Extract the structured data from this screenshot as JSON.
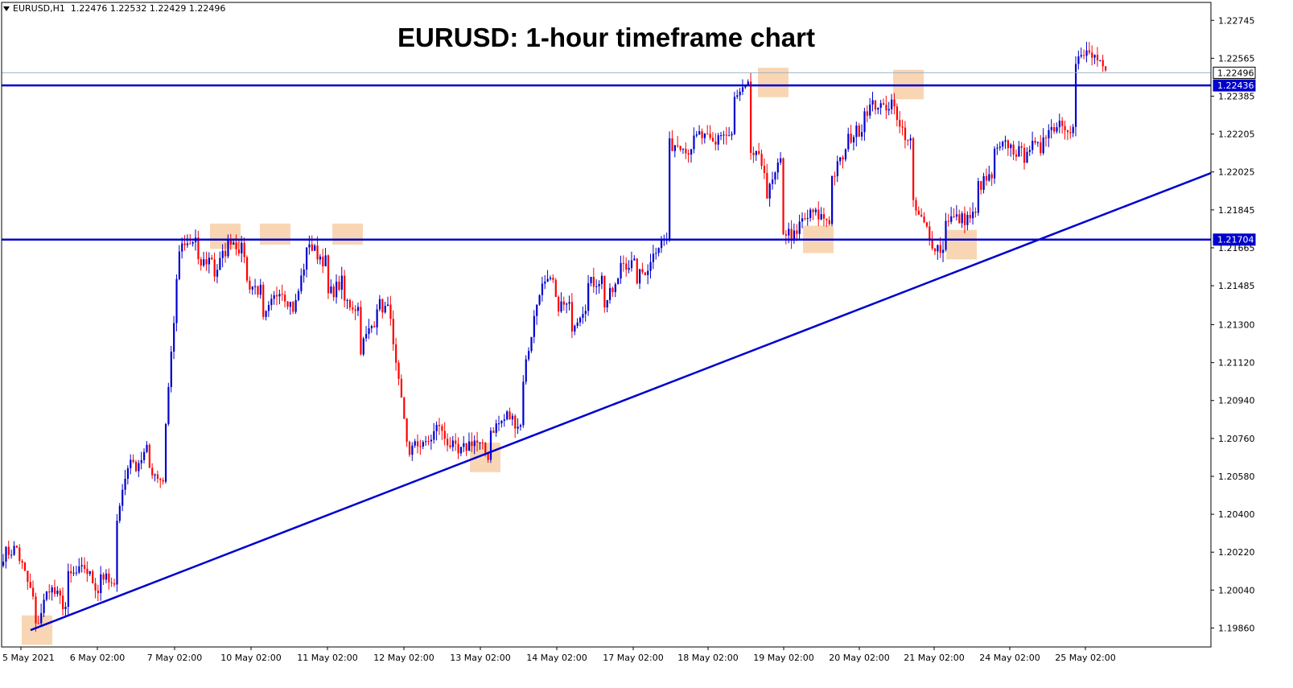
{
  "header": {
    "symbol": "EURUSD,H1",
    "ohlc": "1.22476 1.22532 1.22429 1.22496"
  },
  "colors": {
    "bull": "#0000cd",
    "bear": "#ff0000",
    "line": "#0000cd",
    "highlight": "#f5c89a",
    "grid": "#000000"
  },
  "chart_data": {
    "type": "candlestick",
    "title": "EURUSD: 1-hour timeframe chart",
    "ylim": [
      1.1977,
      1.2283
    ],
    "y_ticks": [
      "1.22745",
      "1.22565",
      "1.22385",
      "1.22205",
      "1.22025",
      "1.21845",
      "1.21665",
      "1.21485",
      "1.21300",
      "1.21120",
      "1.20940",
      "1.20760",
      "1.20580",
      "1.20400",
      "1.20220",
      "1.20040",
      "1.19860"
    ],
    "x_ticks": [
      "5 May 2021",
      "6 May 02:00",
      "7 May 02:00",
      "10 May 02:00",
      "11 May 02:00",
      "12 May 02:00",
      "13 May 02:00",
      "14 May 02:00",
      "17 May 02:00",
      "18 May 02:00",
      "19 May 02:00",
      "20 May 02:00",
      "21 May 02:00",
      "24 May 02:00",
      "25 May 02:00"
    ],
    "price_labels": [
      {
        "label": "1.22496",
        "value": 1.22496,
        "style": "current"
      },
      {
        "label": "1.22436",
        "value": 1.22436,
        "style": "line"
      },
      {
        "label": "1.21704",
        "value": 1.21704,
        "style": "line"
      }
    ],
    "horizontal_lines": [
      1.22436,
      1.21704
    ],
    "trendline": {
      "from": [
        "5 May 2021",
        1.1985
      ],
      "to": [
        "25 May 2021",
        1.2202
      ]
    },
    "highlight_zones": [
      {
        "date": "5 May",
        "low": 1.1978,
        "high": 1.1992
      },
      {
        "date": "7 May",
        "low": 1.2166,
        "high": 1.2178
      },
      {
        "date": "10 May",
        "low": 1.2168,
        "high": 1.2178
      },
      {
        "date": "11 May",
        "low": 1.2168,
        "high": 1.2178
      },
      {
        "date": "13 May",
        "low": 1.206,
        "high": 1.2074
      },
      {
        "date": "19 May",
        "low": 1.2238,
        "high": 1.2252
      },
      {
        "date": "20 May",
        "low": 1.2164,
        "high": 1.2177
      },
      {
        "date": "21 May",
        "low": 1.2237,
        "high": 1.2251
      },
      {
        "date": "24 May",
        "low": 1.2161,
        "high": 1.2175
      }
    ],
    "anchors": [
      [
        1.2021,
        1.2024
      ],
      [
        1.2019,
        1.2
      ],
      [
        1.1986,
        1.2006
      ],
      [
        1.2004,
        1.1996
      ],
      [
        1.201,
        1.2013
      ],
      [
        1.2015,
        1.2004
      ],
      [
        1.2012,
        1.2004
      ],
      [
        1.204,
        1.2068
      ],
      [
        1.2062,
        1.207
      ],
      [
        1.2062,
        1.2056
      ],
      [
        1.2084,
        1.2165
      ],
      [
        1.2166,
        1.217
      ],
      [
        1.2158,
        1.2162
      ],
      [
        1.2154,
        1.2168
      ],
      [
        1.2171,
        1.2164
      ],
      [
        1.215,
        1.2146
      ],
      [
        1.2131,
        1.2145
      ],
      [
        1.2148,
        1.2138
      ],
      [
        1.214,
        1.217
      ],
      [
        1.2166,
        1.216
      ],
      [
        1.2144,
        1.215
      ],
      [
        1.2141,
        1.2138
      ],
      [
        1.2119,
        1.2132
      ],
      [
        1.214,
        1.2136
      ],
      [
        1.2118,
        1.2075
      ],
      [
        1.207,
        1.2075
      ],
      [
        1.2072,
        1.2083
      ],
      [
        1.2078,
        1.207
      ],
      [
        1.2068,
        1.2075
      ],
      [
        1.2075,
        1.2068
      ],
      [
        1.208,
        1.2085
      ],
      [
        1.2087,
        1.2082
      ],
      [
        1.2105,
        1.214
      ],
      [
        1.2147,
        1.215
      ],
      [
        1.214,
        1.2138
      ],
      [
        1.213,
        1.214
      ],
      [
        1.2149,
        1.2152
      ],
      [
        1.214,
        1.215
      ],
      [
        1.216,
        1.2158
      ],
      [
        1.2152,
        1.2159
      ],
      [
        1.2166,
        1.2171
      ],
      [
        1.2215,
        1.2217
      ],
      [
        1.2212,
        1.222
      ],
      [
        1.2219,
        1.2215
      ],
      [
        1.2221,
        1.2219
      ],
      [
        1.2237,
        1.2242
      ],
      [
        1.2212,
        1.2205
      ],
      [
        1.2191,
        1.2207
      ],
      [
        1.2175,
        1.2171
      ],
      [
        1.2178,
        1.2183
      ],
      [
        1.2182,
        1.218
      ],
      [
        1.22,
        1.2212
      ],
      [
        1.2218,
        1.2224
      ],
      [
        1.2232,
        1.2235
      ],
      [
        1.2232,
        1.2237
      ],
      [
        1.2225,
        1.2217
      ],
      [
        1.2186,
        1.2175
      ],
      [
        1.217,
        1.2165
      ],
      [
        1.2181,
        1.218
      ],
      [
        1.218,
        1.2182
      ],
      [
        1.2196,
        1.22
      ],
      [
        1.2211,
        1.2216
      ],
      [
        1.2214,
        1.221
      ],
      [
        1.2215,
        1.2213
      ],
      [
        1.2221,
        1.2225
      ],
      [
        1.2227,
        1.2223
      ],
      [
        1.2254,
        1.226
      ],
      [
        1.2256,
        1.225
      ]
    ]
  }
}
